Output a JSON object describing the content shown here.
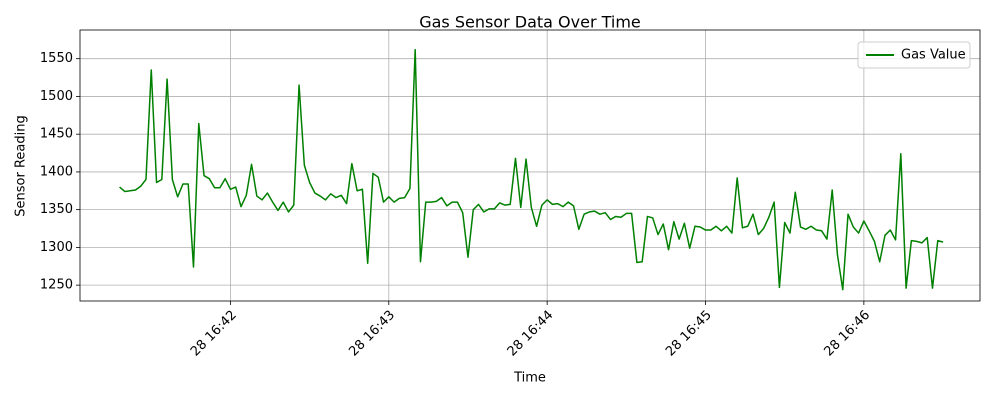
{
  "chart_data": {
    "type": "line",
    "title": "Gas Sensor Data Over Time",
    "xlabel": "Time",
    "ylabel": "Sensor Reading",
    "x": [
      "28 16:41:18",
      "28 16:41:20",
      "28 16:41:22",
      "28 16:41:24",
      "28 16:41:26",
      "28 16:41:28",
      "28 16:41:30",
      "28 16:41:32",
      "28 16:41:34",
      "28 16:41:36",
      "28 16:41:38",
      "28 16:41:40",
      "28 16:41:42",
      "28 16:41:44",
      "28 16:41:46",
      "28 16:41:48",
      "28 16:41:50",
      "28 16:41:52",
      "28 16:41:54",
      "28 16:41:56",
      "28 16:41:58",
      "28 16:42:00",
      "28 16:42:02",
      "28 16:42:04",
      "28 16:42:06",
      "28 16:42:08",
      "28 16:42:10",
      "28 16:42:12",
      "28 16:42:14",
      "28 16:42:16",
      "28 16:42:18",
      "28 16:42:20",
      "28 16:42:22",
      "28 16:42:24",
      "28 16:42:26",
      "28 16:42:28",
      "28 16:42:30",
      "28 16:42:32",
      "28 16:42:34",
      "28 16:42:36",
      "28 16:42:38",
      "28 16:42:40",
      "28 16:42:42",
      "28 16:42:44",
      "28 16:42:46",
      "28 16:42:48",
      "28 16:42:50",
      "28 16:42:52",
      "28 16:42:54",
      "28 16:42:56",
      "28 16:42:58",
      "28 16:43:00",
      "28 16:43:02",
      "28 16:43:04",
      "28 16:43:06",
      "28 16:43:08",
      "28 16:43:10",
      "28 16:43:12",
      "28 16:43:14",
      "28 16:43:16",
      "28 16:43:18",
      "28 16:43:20",
      "28 16:43:22",
      "28 16:43:24",
      "28 16:43:26",
      "28 16:43:28",
      "28 16:43:30",
      "28 16:43:32",
      "28 16:43:34",
      "28 16:43:36",
      "28 16:43:38",
      "28 16:43:40",
      "28 16:43:42",
      "28 16:43:44",
      "28 16:43:46",
      "28 16:43:48",
      "28 16:43:50",
      "28 16:43:52",
      "28 16:43:54",
      "28 16:43:56",
      "28 16:43:58",
      "28 16:44:00",
      "28 16:44:02",
      "28 16:44:04",
      "28 16:44:06",
      "28 16:44:08",
      "28 16:44:10",
      "28 16:44:12",
      "28 16:44:14",
      "28 16:44:16",
      "28 16:44:18",
      "28 16:44:20",
      "28 16:44:22",
      "28 16:44:24",
      "28 16:44:26",
      "28 16:44:28",
      "28 16:44:30",
      "28 16:44:32",
      "28 16:44:34",
      "28 16:44:36",
      "28 16:44:38",
      "28 16:44:40",
      "28 16:44:42",
      "28 16:44:44",
      "28 16:44:46",
      "28 16:44:48",
      "28 16:44:50",
      "28 16:44:52",
      "28 16:44:54",
      "28 16:44:56",
      "28 16:44:58",
      "28 16:45:00",
      "28 16:45:02",
      "28 16:45:04",
      "28 16:45:06",
      "28 16:45:08",
      "28 16:45:10",
      "28 16:45:12",
      "28 16:45:14",
      "28 16:45:16",
      "28 16:45:18",
      "28 16:45:20",
      "28 16:45:22",
      "28 16:45:24",
      "28 16:45:26",
      "28 16:45:28",
      "28 16:45:30",
      "28 16:45:32",
      "28 16:45:34",
      "28 16:45:36",
      "28 16:45:38",
      "28 16:45:40",
      "28 16:45:42",
      "28 16:45:44",
      "28 16:45:46",
      "28 16:45:48",
      "28 16:45:50",
      "28 16:45:52",
      "28 16:45:54",
      "28 16:45:56",
      "28 16:45:58",
      "28 16:46:00",
      "28 16:46:02",
      "28 16:46:04",
      "28 16:46:06",
      "28 16:46:08",
      "28 16:46:10",
      "28 16:46:12",
      "28 16:46:14",
      "28 16:46:16",
      "28 16:46:18",
      "28 16:46:20",
      "28 16:46:22",
      "28 16:46:24",
      "28 16:46:26",
      "28 16:46:28",
      "28 16:46:30"
    ],
    "series": [
      {
        "name": "Gas Value",
        "color": "#008000",
        "values": [
          1380,
          1374,
          1375,
          1376,
          1381,
          1390,
          1535,
          1386,
          1390,
          1523,
          1390,
          1367,
          1384,
          1384,
          1274,
          1464,
          1395,
          1391,
          1379,
          1379,
          1391,
          1377,
          1380,
          1354,
          1369,
          1410,
          1368,
          1363,
          1372,
          1360,
          1349,
          1360,
          1347,
          1356,
          1515,
          1409,
          1386,
          1372,
          1368,
          1363,
          1371,
          1366,
          1369,
          1358,
          1411,
          1375,
          1377,
          1279,
          1398,
          1393,
          1360,
          1367,
          1360,
          1365,
          1366,
          1378,
          1562,
          1281,
          1360,
          1360,
          1361,
          1366,
          1355,
          1360,
          1360,
          1346,
          1287,
          1350,
          1357,
          1347,
          1351,
          1351,
          1359,
          1356,
          1357,
          1418,
          1353,
          1417,
          1353,
          1328,
          1356,
          1363,
          1357,
          1358,
          1354,
          1360,
          1355,
          1324,
          1344,
          1347,
          1348,
          1344,
          1346,
          1337,
          1341,
          1340,
          1345,
          1345,
          1280,
          1281,
          1341,
          1339,
          1317,
          1331,
          1297,
          1334,
          1311,
          1332,
          1299,
          1328,
          1327,
          1323,
          1323,
          1328,
          1322,
          1328,
          1319,
          1392,
          1326,
          1328,
          1344,
          1317,
          1325,
          1340,
          1360,
          1247,
          1333,
          1319,
          1373,
          1327,
          1324,
          1328,
          1323,
          1322,
          1311,
          1376,
          1290,
          1244,
          1344,
          1327,
          1319,
          1335,
          1322,
          1308,
          1281,
          1316,
          1323,
          1310,
          1424,
          1246,
          1309,
          1308,
          1306,
          1313,
          1246,
          1309,
          1307
        ]
      }
    ],
    "xlim": [
      "28 16:41:03",
      "28 16:46:44"
    ],
    "xticks": [
      "28 16:42",
      "28 16:43",
      "28 16:44",
      "28 16:45",
      "28 16:46"
    ],
    "ylim": [
      1229,
      1588
    ],
    "yticks": [
      1250,
      1300,
      1350,
      1400,
      1450,
      1500,
      1550
    ],
    "grid": true,
    "legend": "upper right"
  }
}
